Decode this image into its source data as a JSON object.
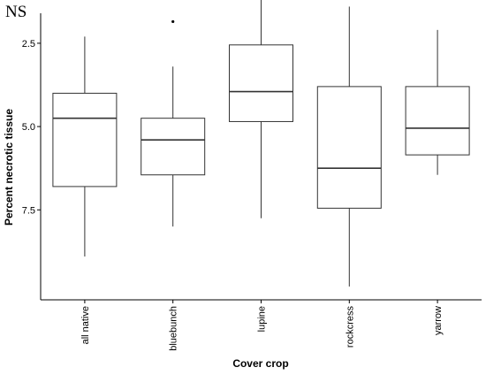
{
  "annotation": "NS",
  "chart_data": {
    "type": "boxplot",
    "xlabel": "Cover crop",
    "ylabel": "Percent necrotic tissue",
    "y_reversed": true,
    "ylim": [
      10.2,
      1.6
    ],
    "yticks": [
      2.5,
      5.0,
      7.5
    ],
    "ytick_labels": [
      "2.5",
      "5.0",
      "7.5"
    ],
    "grid": false,
    "categories": [
      "all native",
      "bluebunch",
      "lupine",
      "rockcress",
      "yarrow"
    ],
    "boxes": [
      {
        "category": "all native",
        "whisker_low": 2.3,
        "q1": 4.0,
        "median": 4.75,
        "q3": 6.8,
        "whisker_high": 8.9,
        "outliers": []
      },
      {
        "category": "bluebunch",
        "whisker_low": 3.2,
        "q1": 4.75,
        "median": 5.4,
        "q3": 6.45,
        "whisker_high": 8.0,
        "outliers": [
          1.85
        ]
      },
      {
        "category": "lupine",
        "whisker_low": 1.1,
        "q1": 2.55,
        "median": 3.95,
        "q3": 4.85,
        "whisker_high": 7.75,
        "outliers": []
      },
      {
        "category": "rockcress",
        "whisker_low": 1.4,
        "q1": 3.8,
        "median": 6.25,
        "q3": 7.45,
        "whisker_high": 9.8,
        "outliers": []
      },
      {
        "category": "yarrow",
        "whisker_low": 2.1,
        "q1": 3.8,
        "median": 5.05,
        "q3": 5.85,
        "whisker_high": 6.45,
        "outliers": []
      }
    ],
    "colors": {
      "box_fill": "#ffffff",
      "box_stroke": "#333333",
      "median": "#333333",
      "whisker": "#333333",
      "axis": "#000000"
    }
  }
}
